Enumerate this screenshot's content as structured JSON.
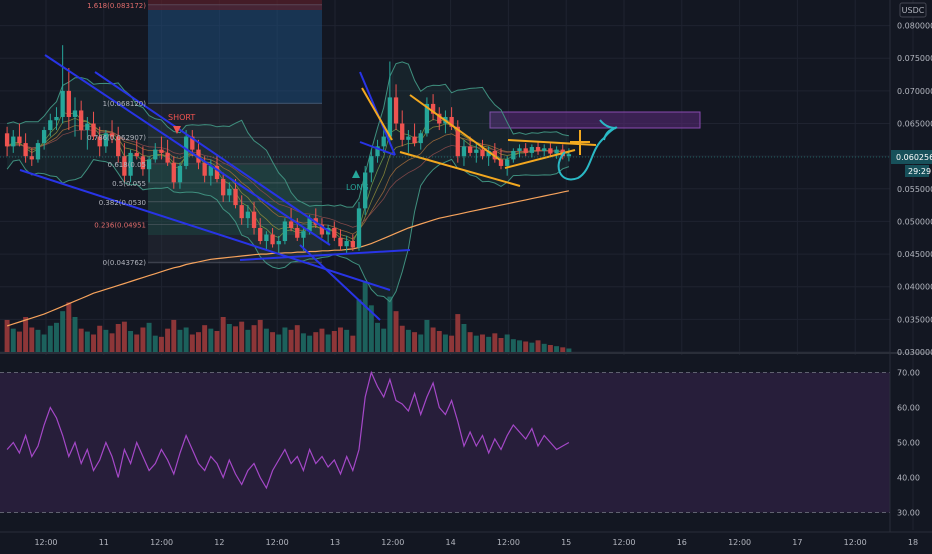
{
  "colors": {
    "background": "#131722",
    "grid": "#1f2330",
    "axis_text": "#b2b5be",
    "up": "#26a69a",
    "down": "#ef5350",
    "volume_up": "#1f6f66",
    "volume_down": "#a33c3c",
    "ma": "#f7a35c",
    "bollinger": "#3f8f7e",
    "rsi_line": "#a548c8",
    "rsi_band": "#2a1f3d",
    "trend_blue": "#2834e6",
    "trend_orange": "#f3a81f",
    "sketch_cyan": "#2ab9c5",
    "fib_short_box": "#1e4d7a",
    "fib_short_stop": "#5a1f2a",
    "supply_zone": "#5b2a7a",
    "price_tag": "#17505a"
  },
  "header": {
    "currency": "USDC"
  },
  "price_tag": {
    "price": "0.060256",
    "countdown": "29:29"
  },
  "annotations": {
    "short": "SHORT",
    "long": "LONG"
  },
  "fib_levels": [
    {
      "label": "1.618(0.083172)",
      "value": 0.083172
    },
    {
      "label": "1(0.068120)",
      "value": 0.06812
    },
    {
      "label": "0.786(0.062907)",
      "value": 0.062907
    },
    {
      "label": "0.618(0.05",
      "value": 0.0588
    },
    {
      "label": "0.5(0.055",
      "value": 0.0559
    },
    {
      "label": "0.382(0.0530",
      "value": 0.053
    },
    {
      "label": "0.236(0.04951",
      "value": 0.04951
    },
    {
      "label": "0(0.043762)",
      "value": 0.043762
    }
  ],
  "chart_data": [
    {
      "type": "candlestick",
      "pane": "price",
      "y_axis_ticks": [
        "0.080000",
        "0.075000",
        "0.070000",
        "0.065000",
        "0.060000",
        "0.055000",
        "0.050000",
        "0.045000",
        "0.040000",
        "0.035000",
        "0.030000"
      ],
      "ylim": [
        0.03,
        0.083
      ],
      "x_axis_ticks": [
        "12:00",
        "11",
        "12:00",
        "12",
        "12:00",
        "13",
        "12:00",
        "14",
        "12:00",
        "15",
        "12:00",
        "16",
        "12:00",
        "17",
        "12:00",
        "18"
      ],
      "ohlc": [
        [
          0.0635,
          0.0645,
          0.06,
          0.0615
        ],
        [
          0.0615,
          0.064,
          0.0605,
          0.063
        ],
        [
          0.063,
          0.065,
          0.0615,
          0.062
        ],
        [
          0.062,
          0.0635,
          0.059,
          0.06
        ],
        [
          0.06,
          0.0612,
          0.0585,
          0.0595
        ],
        [
          0.0595,
          0.0625,
          0.059,
          0.062
        ],
        [
          0.062,
          0.0645,
          0.061,
          0.064
        ],
        [
          0.064,
          0.0665,
          0.063,
          0.0655
        ],
        [
          0.0655,
          0.0675,
          0.064,
          0.066
        ],
        [
          0.066,
          0.077,
          0.065,
          0.07
        ],
        [
          0.07,
          0.0735,
          0.064,
          0.066
        ],
        [
          0.066,
          0.069,
          0.063,
          0.067
        ],
        [
          0.067,
          0.0685,
          0.0625,
          0.064
        ],
        [
          0.064,
          0.066,
          0.061,
          0.065
        ],
        [
          0.065,
          0.0668,
          0.0625,
          0.063
        ],
        [
          0.063,
          0.0645,
          0.06,
          0.0615
        ],
        [
          0.0615,
          0.064,
          0.0605,
          0.0635
        ],
        [
          0.0635,
          0.0655,
          0.062,
          0.063
        ],
        [
          0.063,
          0.0645,
          0.059,
          0.06
        ],
        [
          0.06,
          0.062,
          0.056,
          0.057
        ],
        [
          0.057,
          0.061,
          0.056,
          0.0605
        ],
        [
          0.0605,
          0.0625,
          0.0595,
          0.06
        ],
        [
          0.06,
          0.0615,
          0.057,
          0.058
        ],
        [
          0.058,
          0.06,
          0.056,
          0.0595
        ],
        [
          0.0595,
          0.062,
          0.059,
          0.061
        ],
        [
          0.061,
          0.063,
          0.0595,
          0.0605
        ],
        [
          0.0605,
          0.0625,
          0.0585,
          0.059
        ],
        [
          0.059,
          0.06,
          0.055,
          0.056
        ],
        [
          0.056,
          0.059,
          0.055,
          0.0585
        ],
        [
          0.0585,
          0.064,
          0.058,
          0.063
        ],
        [
          0.063,
          0.064,
          0.06,
          0.061
        ],
        [
          0.061,
          0.0625,
          0.058,
          0.059
        ],
        [
          0.059,
          0.06,
          0.056,
          0.057
        ],
        [
          0.057,
          0.0595,
          0.0555,
          0.0585
        ],
        [
          0.0585,
          0.06,
          0.056,
          0.0565
        ],
        [
          0.0565,
          0.0575,
          0.053,
          0.054
        ],
        [
          0.054,
          0.056,
          0.053,
          0.055
        ],
        [
          0.055,
          0.0565,
          0.052,
          0.0525
        ],
        [
          0.0525,
          0.054,
          0.0495,
          0.0505
        ],
        [
          0.0505,
          0.0525,
          0.049,
          0.0515
        ],
        [
          0.0515,
          0.053,
          0.048,
          0.049
        ],
        [
          0.049,
          0.0505,
          0.0465,
          0.047
        ],
        [
          0.047,
          0.0485,
          0.0455,
          0.048
        ],
        [
          0.048,
          0.049,
          0.046,
          0.0465
        ],
        [
          0.0465,
          0.0478,
          0.0452,
          0.047
        ],
        [
          0.047,
          0.0505,
          0.0465,
          0.05
        ],
        [
          0.05,
          0.052,
          0.0485,
          0.049
        ],
        [
          0.049,
          0.0505,
          0.047,
          0.0475
        ],
        [
          0.0475,
          0.049,
          0.0455,
          0.0485
        ],
        [
          0.0485,
          0.051,
          0.048,
          0.0505
        ],
        [
          0.0505,
          0.052,
          0.049,
          0.0495
        ],
        [
          0.0495,
          0.0505,
          0.0475,
          0.048
        ],
        [
          0.048,
          0.0495,
          0.0465,
          0.049
        ],
        [
          0.049,
          0.05,
          0.047,
          0.0475
        ],
        [
          0.0475,
          0.0488,
          0.0455,
          0.0462
        ],
        [
          0.0462,
          0.0478,
          0.045,
          0.047
        ],
        [
          0.047,
          0.048,
          0.0455,
          0.046
        ],
        [
          0.046,
          0.053,
          0.0455,
          0.052
        ],
        [
          0.052,
          0.0585,
          0.051,
          0.0575
        ],
        [
          0.0575,
          0.061,
          0.056,
          0.06
        ],
        [
          0.06,
          0.0625,
          0.059,
          0.0615
        ],
        [
          0.0615,
          0.064,
          0.0605,
          0.063
        ],
        [
          0.063,
          0.0745,
          0.062,
          0.069
        ],
        [
          0.069,
          0.071,
          0.064,
          0.065
        ],
        [
          0.065,
          0.067,
          0.0615,
          0.0625
        ],
        [
          0.0625,
          0.064,
          0.0605,
          0.063
        ],
        [
          0.063,
          0.065,
          0.0615,
          0.062
        ],
        [
          0.062,
          0.064,
          0.061,
          0.0635
        ],
        [
          0.0635,
          0.069,
          0.063,
          0.068
        ],
        [
          0.068,
          0.0695,
          0.0655,
          0.0665
        ],
        [
          0.0665,
          0.0675,
          0.064,
          0.065
        ],
        [
          0.065,
          0.067,
          0.0635,
          0.066
        ],
        [
          0.066,
          0.0675,
          0.064,
          0.0645
        ],
        [
          0.0645,
          0.0655,
          0.059,
          0.06
        ],
        [
          0.06,
          0.0625,
          0.0585,
          0.0615
        ],
        [
          0.0615,
          0.063,
          0.06,
          0.0605
        ],
        [
          0.0605,
          0.062,
          0.059,
          0.061
        ],
        [
          0.061,
          0.0625,
          0.0595,
          0.06
        ],
        [
          0.06,
          0.0615,
          0.0585,
          0.0608
        ],
        [
          0.0608,
          0.062,
          0.059,
          0.0595
        ],
        [
          0.0595,
          0.0612,
          0.058,
          0.0585
        ],
        [
          0.0585,
          0.06,
          0.057,
          0.0595
        ],
        [
          0.0595,
          0.0612,
          0.059,
          0.0608
        ],
        [
          0.0608,
          0.0618,
          0.0598,
          0.0612
        ],
        [
          0.0612,
          0.062,
          0.06,
          0.0605
        ],
        [
          0.0605,
          0.0618,
          0.0598,
          0.0614
        ],
        [
          0.0614,
          0.0622,
          0.0602,
          0.0608
        ],
        [
          0.0608,
          0.0618,
          0.06,
          0.0612
        ],
        [
          0.0612,
          0.062,
          0.06,
          0.0604
        ],
        [
          0.0604,
          0.0615,
          0.0596,
          0.061
        ],
        [
          0.061,
          0.0618,
          0.0595,
          0.06
        ],
        [
          0.06,
          0.0612,
          0.0592,
          0.0603
        ]
      ],
      "volume": [
        55,
        40,
        35,
        60,
        42,
        38,
        30,
        45,
        50,
        70,
        85,
        60,
        40,
        35,
        30,
        45,
        38,
        32,
        48,
        52,
        36,
        30,
        42,
        50,
        28,
        26,
        40,
        55,
        38,
        42,
        30,
        34,
        46,
        40,
        36,
        60,
        48,
        44,
        52,
        38,
        46,
        55,
        40,
        34,
        30,
        42,
        38,
        46,
        32,
        28,
        34,
        40,
        30,
        36,
        42,
        38,
        28,
        90,
        120,
        80,
        50,
        40,
        95,
        70,
        45,
        38,
        34,
        30,
        55,
        42,
        36,
        30,
        28,
        65,
        48,
        34,
        28,
        30,
        26,
        32,
        24,
        30,
        22,
        20,
        18,
        16,
        20,
        14,
        12,
        10,
        8,
        6
      ],
      "moving_average": [
        0.034,
        0.0343,
        0.0346,
        0.0349,
        0.0352,
        0.0355,
        0.0358,
        0.0362,
        0.0366,
        0.037,
        0.0374,
        0.0378,
        0.0382,
        0.0386,
        0.039,
        0.0393,
        0.0396,
        0.0399,
        0.0402,
        0.0405,
        0.0408,
        0.0411,
        0.0414,
        0.0417,
        0.042,
        0.0423,
        0.0426,
        0.0429,
        0.0431,
        0.0434,
        0.0436,
        0.0438,
        0.044,
        0.0442,
        0.0443,
        0.0444,
        0.0445,
        0.0446,
        0.0447,
        0.0448,
        0.0449,
        0.045,
        0.045,
        0.0451,
        0.0451,
        0.0452,
        0.0452,
        0.0453,
        0.0453,
        0.0454,
        0.0454,
        0.0455,
        0.0455,
        0.0456,
        0.0456,
        0.0457,
        0.0458,
        0.046,
        0.0463,
        0.0466,
        0.047,
        0.0474,
        0.0478,
        0.0482,
        0.0486,
        0.049,
        0.0493,
        0.0496,
        0.0499,
        0.0502,
        0.0505,
        0.0507,
        0.0509,
        0.0511,
        0.0513,
        0.0515,
        0.0517,
        0.0519,
        0.0521,
        0.0523,
        0.0525,
        0.0527,
        0.0529,
        0.0531,
        0.0533,
        0.0535,
        0.0537,
        0.0539,
        0.0541,
        0.0543,
        0.0545,
        0.0547
      ]
    },
    {
      "type": "line",
      "pane": "rsi",
      "y_axis_ticks": [
        "70.00",
        "60.00",
        "50.00",
        "40.00",
        "30.00"
      ],
      "ylim": [
        25,
        75
      ],
      "bands": [
        30,
        70
      ],
      "values": [
        48,
        50,
        47,
        52,
        46,
        49,
        55,
        60,
        57,
        52,
        46,
        50,
        44,
        48,
        42,
        45,
        50,
        46,
        40,
        48,
        44,
        50,
        46,
        42,
        44,
        48,
        45,
        41,
        47,
        52,
        48,
        44,
        42,
        46,
        44,
        40,
        45,
        41,
        38,
        42,
        44,
        40,
        37,
        42,
        45,
        48,
        44,
        46,
        42,
        48,
        44,
        46,
        43,
        45,
        41,
        46,
        42,
        48,
        63,
        70,
        66,
        63,
        68,
        62,
        61,
        59,
        64,
        58,
        63,
        67,
        60,
        58,
        62,
        56,
        49,
        53,
        49,
        52,
        47,
        51,
        48,
        52,
        55,
        53,
        51,
        54,
        49,
        52,
        50,
        48,
        49,
        50
      ]
    }
  ]
}
